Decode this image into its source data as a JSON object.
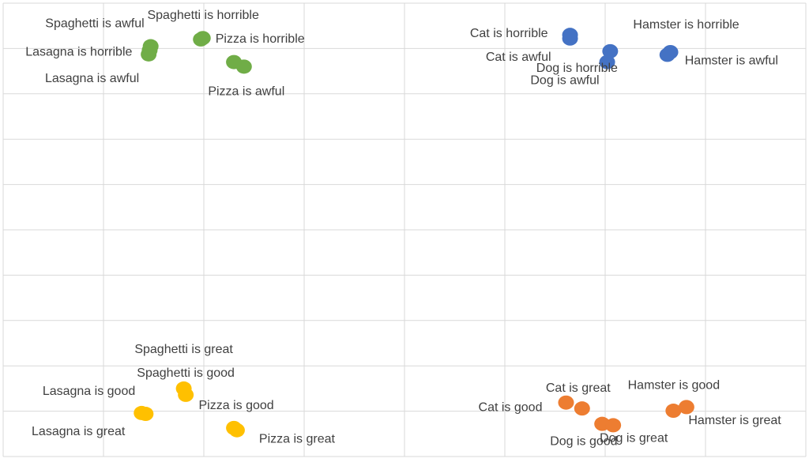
{
  "chart_data": {
    "type": "scatter",
    "title": "",
    "xlabel": "",
    "ylabel": "",
    "xlim": [
      0,
      8
    ],
    "ylim": [
      0,
      10
    ],
    "grid": true,
    "legend": "none",
    "colors": {
      "food_negative": "#70AD47",
      "animal_negative": "#4472C4",
      "food_positive": "#FFC000",
      "animal_positive": "#ED7D31",
      "grid": "#D9D9D9",
      "text": "#404040"
    },
    "points": [
      {
        "label": "Spaghetti is awful",
        "x": 1.47,
        "y": 9.05,
        "color_key": "food_negative"
      },
      {
        "label": "Spaghetti is horrible",
        "x": 1.97,
        "y": 9.2,
        "color_key": "food_negative"
      },
      {
        "label": "Lasagna is horrible",
        "x": 1.46,
        "y": 8.96,
        "color_key": "food_negative"
      },
      {
        "label": "Lasagna is awful",
        "x": 1.45,
        "y": 8.87,
        "color_key": "food_negative"
      },
      {
        "label": "Pizza is horrible",
        "x": 1.99,
        "y": 9.23,
        "color_key": "food_negative"
      },
      {
        "label": "Pizza is awful",
        "x": 2.4,
        "y": 8.6,
        "color_key": "food_negative"
      },
      {
        "label": "Pizza is awful",
        "x": 2.3,
        "y": 8.7,
        "color_key": "food_negative"
      },
      {
        "label": "Cat is horrible",
        "x": 5.65,
        "y": 9.3,
        "color_key": "animal_negative"
      },
      {
        "label": "Cat is awful",
        "x": 5.65,
        "y": 9.22,
        "color_key": "animal_negative"
      },
      {
        "label": "Hamster is horrible",
        "x": 6.65,
        "y": 8.92,
        "color_key": "animal_negative"
      },
      {
        "label": "Hamster is awful",
        "x": 6.62,
        "y": 8.86,
        "color_key": "animal_negative"
      },
      {
        "label": "Dog is awful",
        "x": 6.02,
        "y": 8.7,
        "color_key": "animal_negative"
      },
      {
        "label": "Dog is horrible",
        "x": 6.05,
        "y": 8.94,
        "color_key": "animal_negative"
      },
      {
        "label": "Spaghetti is great",
        "x": 1.8,
        "y": 1.5,
        "color_key": "food_positive"
      },
      {
        "label": "Spaghetti is good",
        "x": 1.82,
        "y": 1.36,
        "color_key": "food_positive"
      },
      {
        "label": "Lasagna is good",
        "x": 1.38,
        "y": 0.96,
        "color_key": "food_positive"
      },
      {
        "label": "Lasagna is great",
        "x": 1.42,
        "y": 0.94,
        "color_key": "food_positive"
      },
      {
        "label": "Pizza is good",
        "x": 2.3,
        "y": 0.63,
        "color_key": "food_positive"
      },
      {
        "label": "Pizza is great",
        "x": 2.33,
        "y": 0.58,
        "color_key": "food_positive"
      },
      {
        "label": "Cat is great",
        "x": 5.77,
        "y": 1.06,
        "color_key": "animal_positive"
      },
      {
        "label": "Cat is good",
        "x": 5.61,
        "y": 1.19,
        "color_key": "animal_positive"
      },
      {
        "label": "Hamster is good",
        "x": 6.81,
        "y": 1.09,
        "color_key": "animal_positive"
      },
      {
        "label": "Hamster is great",
        "x": 6.68,
        "y": 1.01,
        "color_key": "animal_positive"
      },
      {
        "label": "Dog is good",
        "x": 5.97,
        "y": 0.72,
        "color_key": "animal_positive"
      },
      {
        "label": "Dog is great",
        "x": 6.08,
        "y": 0.69,
        "color_key": "animal_positive"
      }
    ]
  }
}
